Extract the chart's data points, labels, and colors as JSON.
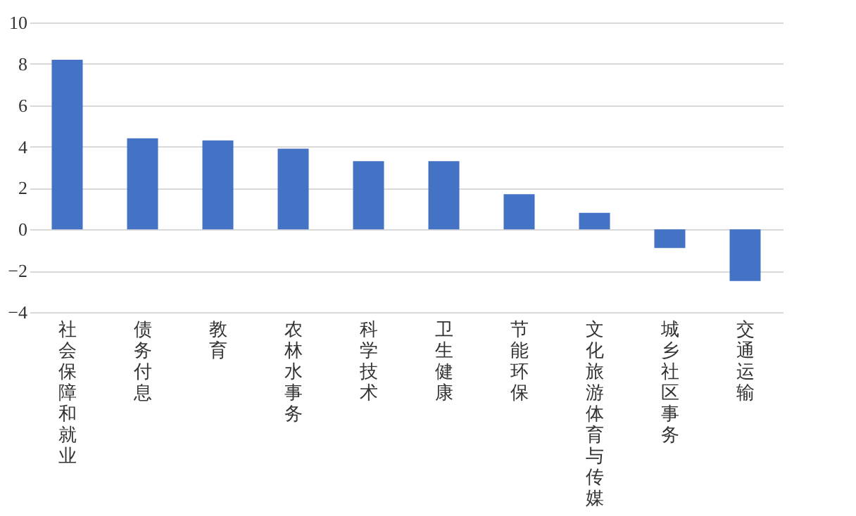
{
  "chart_data": {
    "type": "bar",
    "categories": [
      "社会保障和就业",
      "债务付息",
      "教育",
      "农林水事务",
      "科学技术",
      "卫生健康",
      "节能环保",
      "文化旅游体育与传媒",
      "城乡社区事务",
      "交通运输"
    ],
    "values": [
      8.2,
      4.4,
      4.3,
      3.9,
      3.3,
      3.3,
      1.7,
      0.8,
      -0.9,
      -2.5
    ],
    "color": "#4472c4",
    "ylim": [
      -4,
      10
    ],
    "yticks": [
      -4,
      -2,
      0,
      2,
      4,
      6,
      8,
      10
    ],
    "grid": "y"
  }
}
